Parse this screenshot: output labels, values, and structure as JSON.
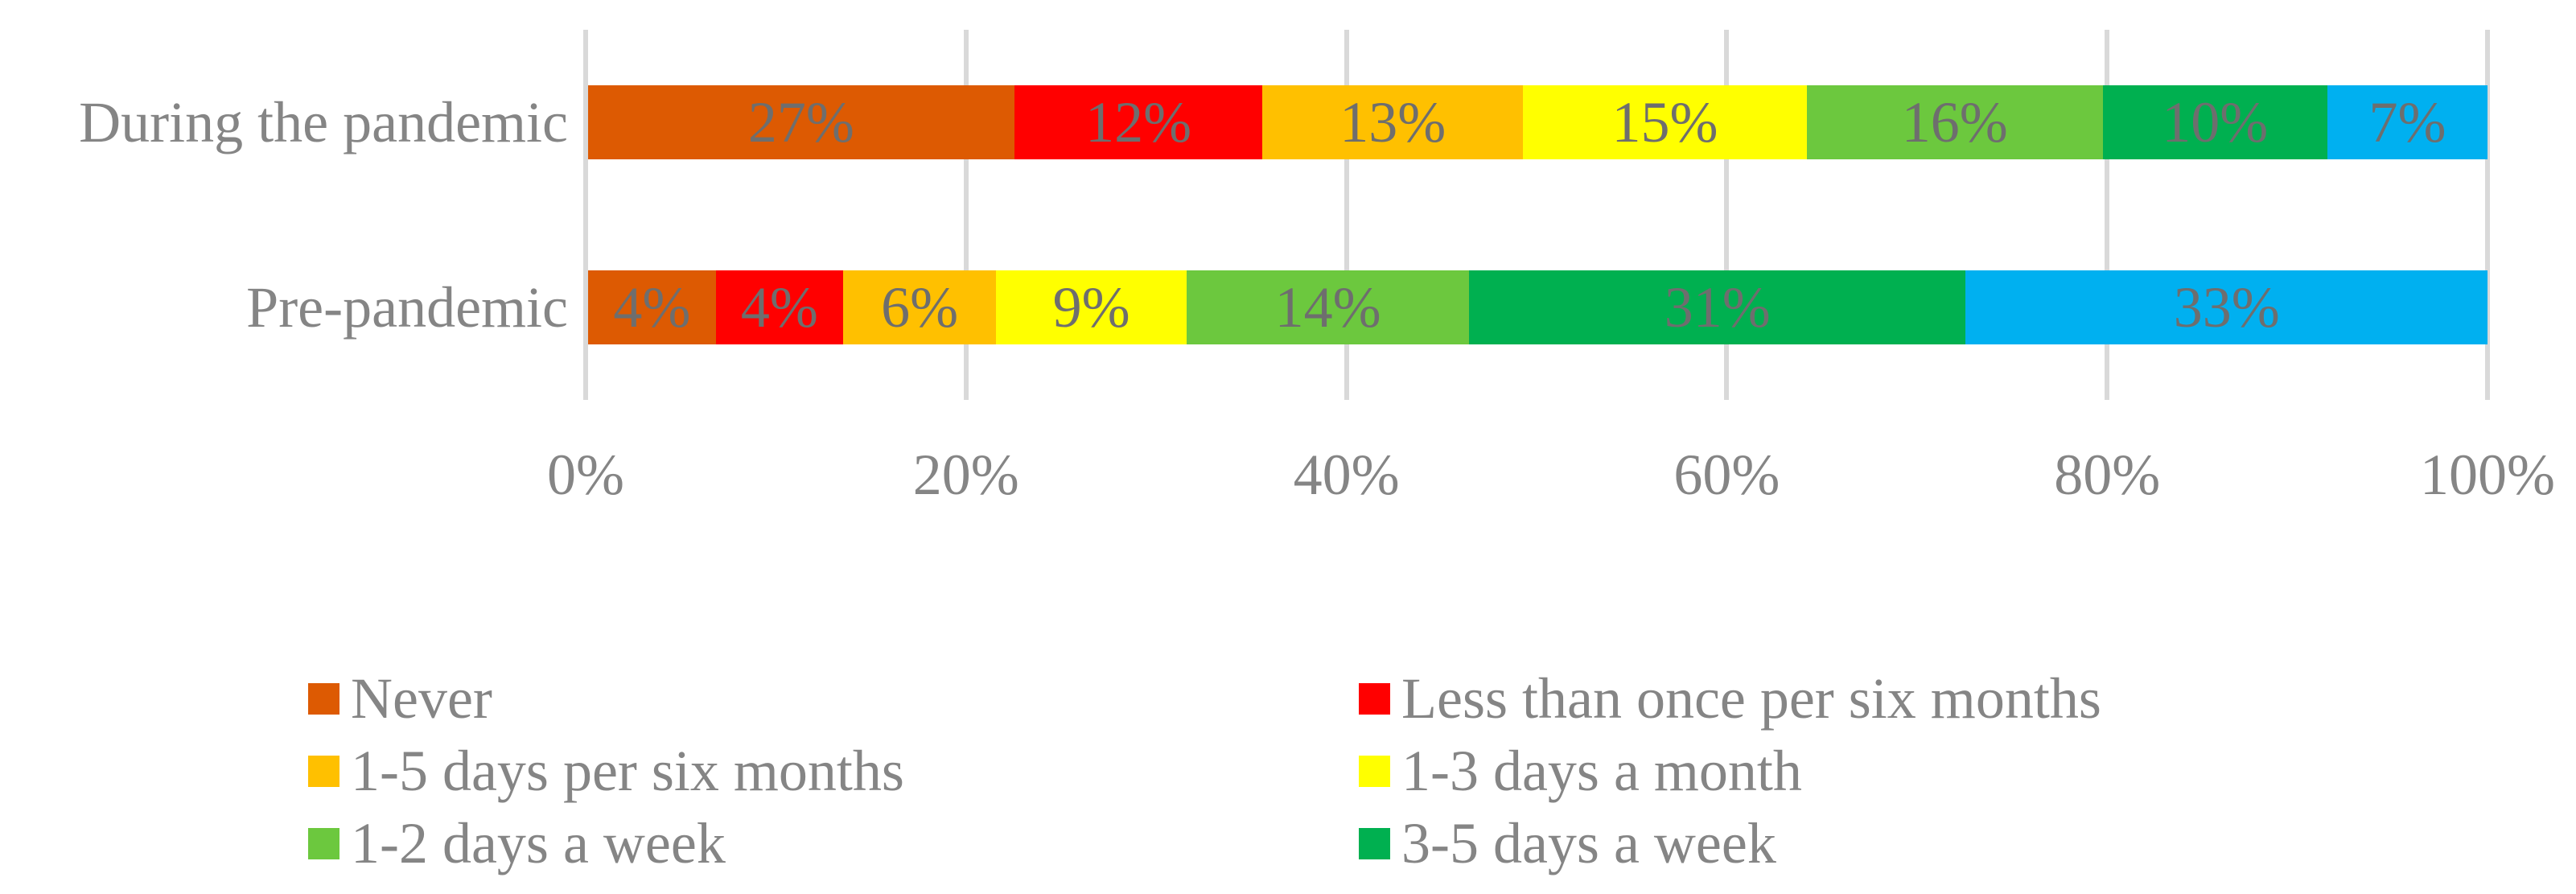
{
  "chart_data": {
    "type": "bar",
    "orientation": "horizontal",
    "stacked": true,
    "title": "",
    "xlabel": "",
    "ylabel": "",
    "categories": [
      "During the pandemic",
      "Pre-pandemic"
    ],
    "series": [
      {
        "name": "Never",
        "color": "#DD5A02",
        "values": [
          27,
          4
        ],
        "in_legend": true
      },
      {
        "name": "Less than once per six months",
        "color": "#FF0000",
        "values": [
          12,
          4
        ],
        "in_legend": true
      },
      {
        "name": "1-5 days per six months",
        "color": "#FFC000",
        "values": [
          13,
          6
        ],
        "in_legend": true
      },
      {
        "name": "1-3 days a month",
        "color": "#FFFF00",
        "values": [
          15,
          9
        ],
        "in_legend": true
      },
      {
        "name": "1-2 days a week",
        "color": "#6CC83E",
        "values": [
          16,
          14
        ],
        "in_legend": true
      },
      {
        "name": "3-5 days a week",
        "color": "#00B050",
        "values": [
          10,
          31
        ],
        "in_legend": true
      },
      {
        "name": "",
        "color": "#00B0F0",
        "values": [
          7,
          33
        ],
        "in_legend": false
      }
    ],
    "data_labels": {
      "format": "{value}%",
      "color": "#6E6E6E"
    },
    "x_ticks": [
      "0%",
      "20%",
      "40%",
      "60%",
      "80%",
      "100%"
    ],
    "xlim": [
      0,
      100
    ],
    "grid": true,
    "gridline_color": "#D9D9D9",
    "text_color": "#858585",
    "legend_position": "bottom",
    "legend_columns": 2
  }
}
